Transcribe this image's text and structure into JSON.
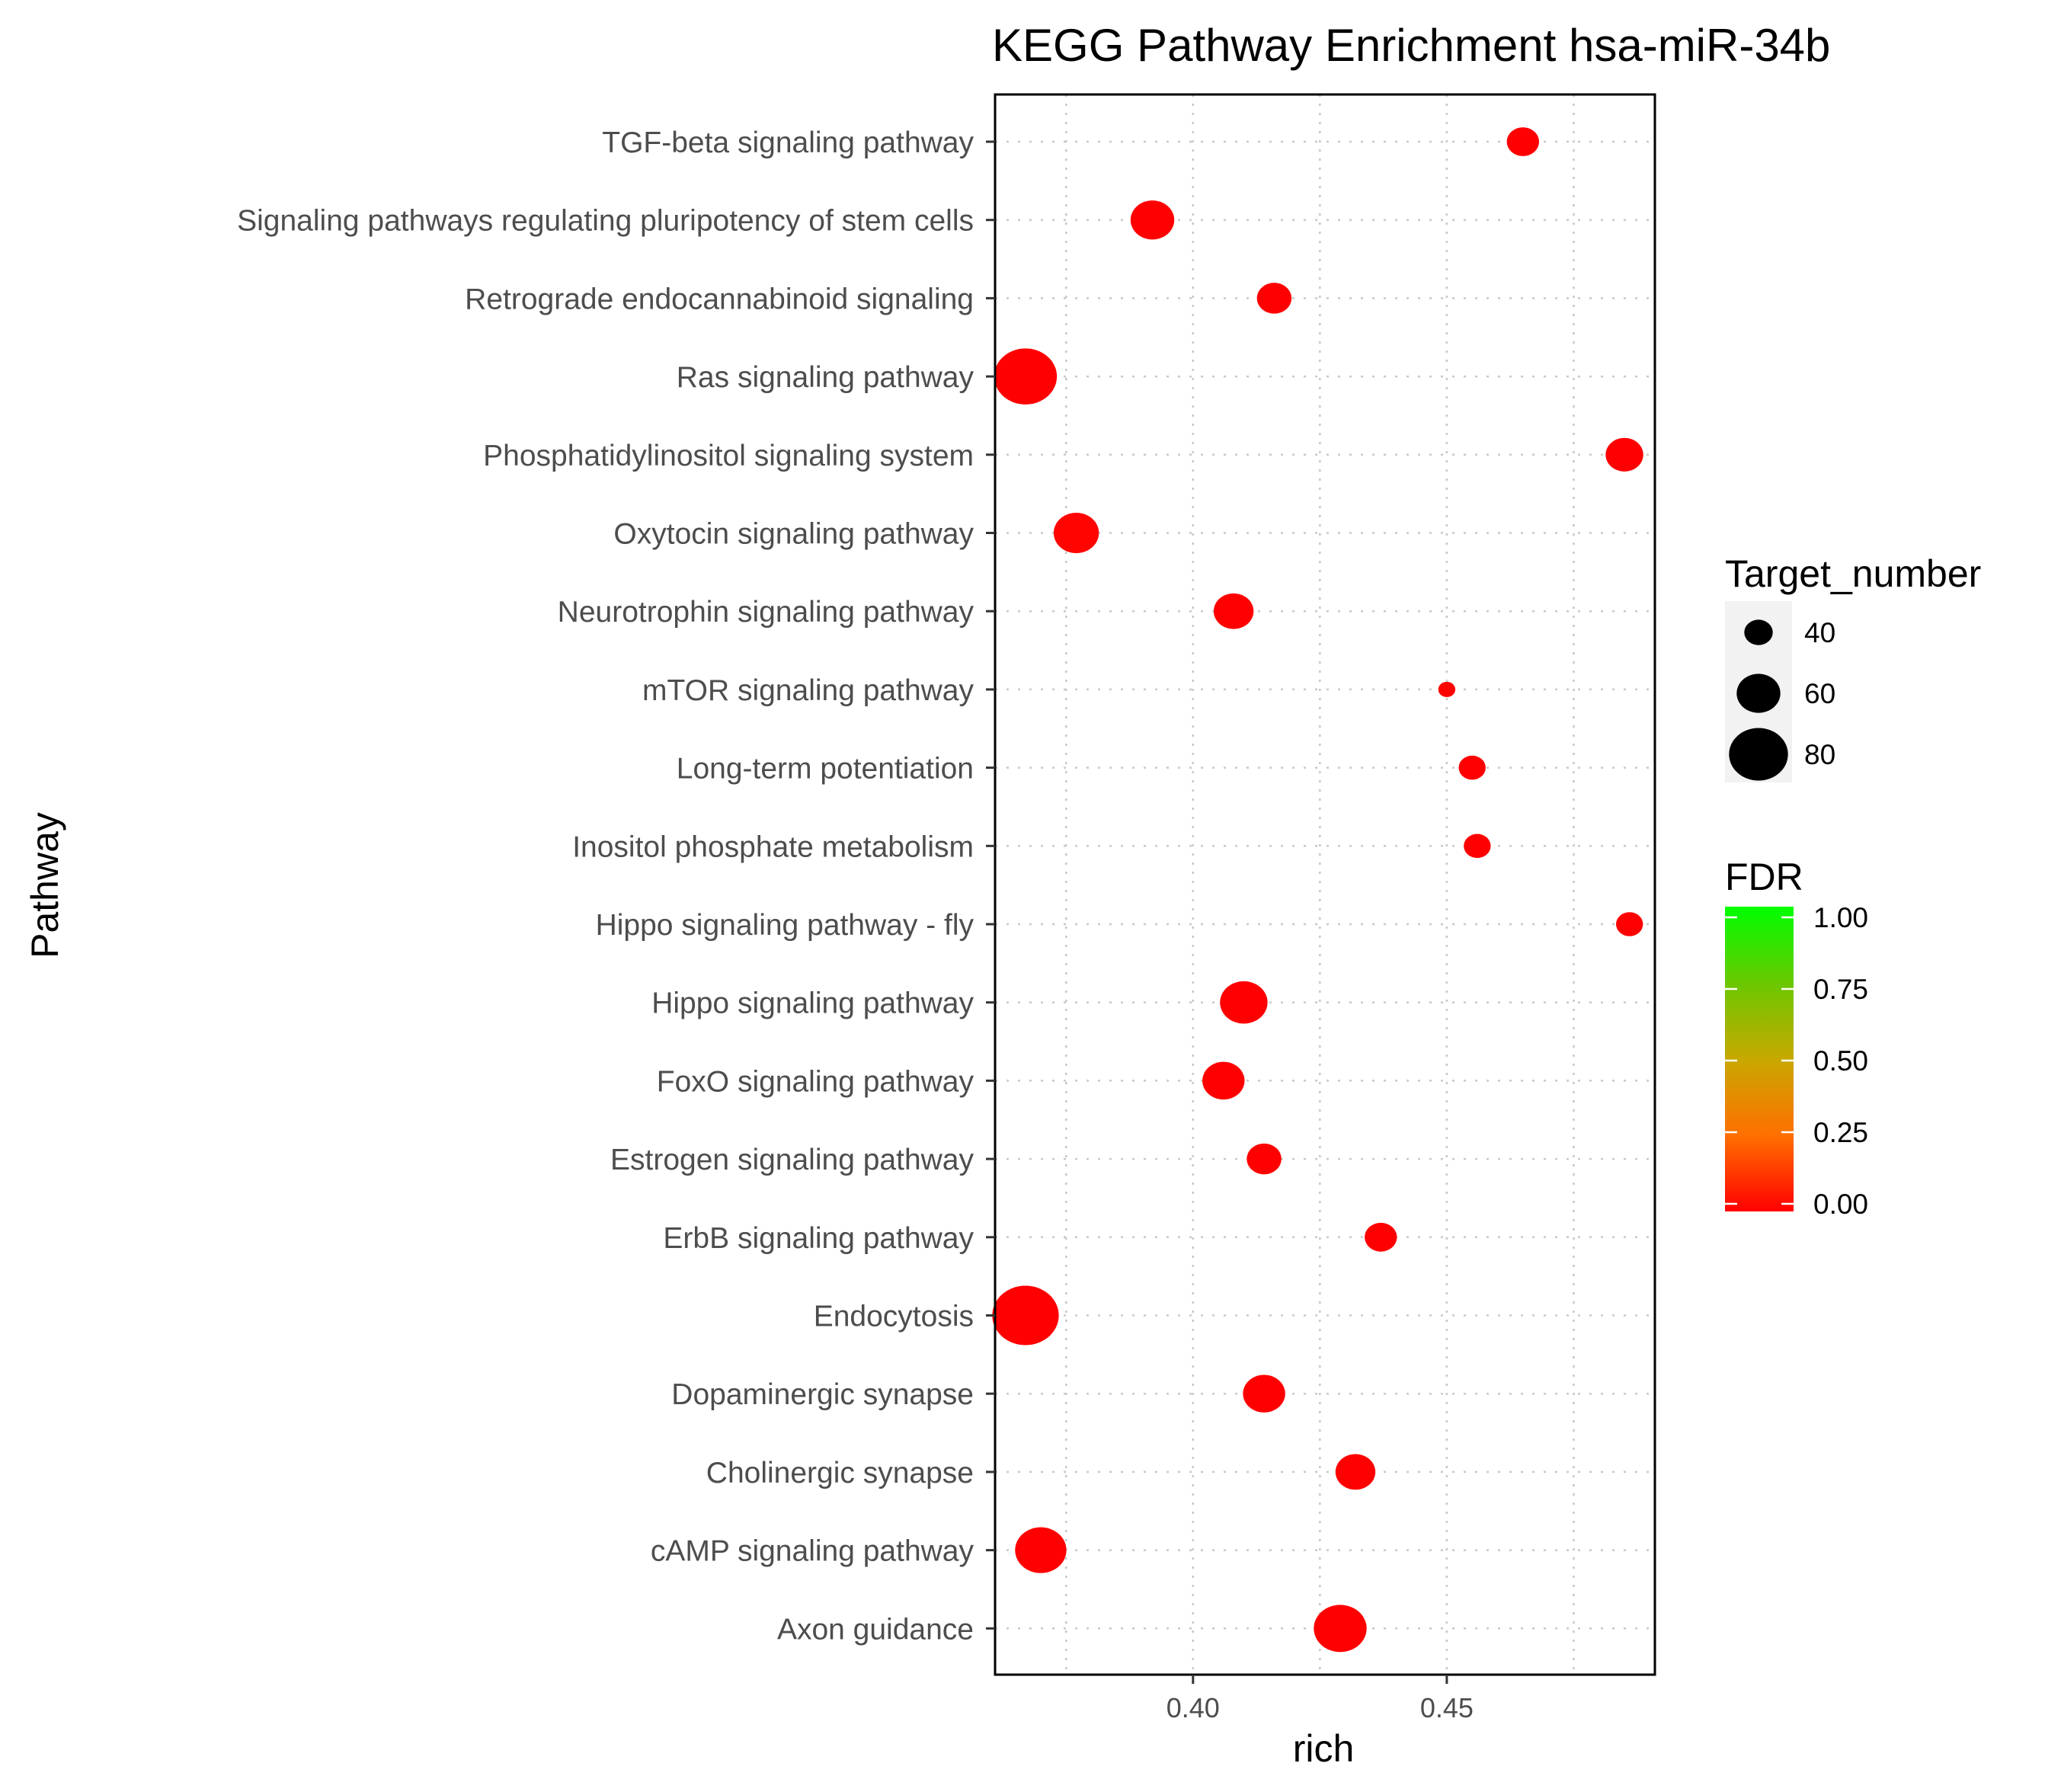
{
  "chart_data": {
    "type": "scatter",
    "title": "KEGG Pathway Enrichment  hsa-miR-34b",
    "xlabel": "rich",
    "ylabel": "Pathway",
    "xlim": [
      0.361,
      0.491
    ],
    "xticks": [
      0.4,
      0.45
    ],
    "xtick_labels": [
      "0.40",
      "0.45"
    ],
    "grid": true,
    "categories": [
      "TGF-beta signaling pathway",
      "Signaling pathways regulating pluripotency of stem cells",
      "Retrograde endocannabinoid signaling",
      "Ras signaling pathway",
      "Phosphatidylinositol signaling system",
      "Oxytocin signaling pathway",
      "Neurotrophin signaling pathway",
      "mTOR signaling pathway",
      "Long-term potentiation",
      "Inositol phosphate metabolism",
      "Hippo signaling pathway - fly",
      "Hippo signaling pathway",
      "FoxO signaling pathway",
      "Estrogen signaling pathway",
      "ErbB signaling pathway",
      "Endocytosis",
      "Dopaminergic synapse",
      "Cholinergic synapse",
      "cAMP signaling pathway",
      "Axon guidance"
    ],
    "rich": [
      0.465,
      0.392,
      0.416,
      0.367,
      0.485,
      0.377,
      0.408,
      0.45,
      0.455,
      0.456,
      0.486,
      0.41,
      0.406,
      0.414,
      0.437,
      0.367,
      0.414,
      0.432,
      0.37,
      0.429
    ],
    "target_number": [
      45,
      60,
      48,
      85,
      52,
      62,
      55,
      25,
      38,
      38,
      38,
      65,
      58,
      48,
      45,
      90,
      58,
      55,
      70,
      72
    ],
    "fdr": [
      0.0,
      0.0,
      0.0,
      0.0,
      0.0,
      0.01,
      0.0,
      0.0,
      0.0,
      0.0,
      0.0,
      0.0,
      0.0,
      0.0,
      0.0,
      0.0,
      0.0,
      0.0,
      0.0,
      0.0
    ],
    "size_legend": {
      "title": "Target_number",
      "values": [
        40,
        60,
        80
      ],
      "labels": [
        "40",
        "60",
        "80"
      ]
    },
    "color_legend": {
      "title": "FDR",
      "range": [
        0.0,
        1.0
      ],
      "tick_values": [
        1.0,
        0.75,
        0.5,
        0.25,
        0.0
      ],
      "tick_labels": [
        "1.00",
        "0.75",
        "0.50",
        "0.25",
        "0.00"
      ],
      "low_color": "#ff0000",
      "high_color": "#00ff00"
    },
    "point_color": "#ff0000",
    "background_color": "#ffffff"
  }
}
